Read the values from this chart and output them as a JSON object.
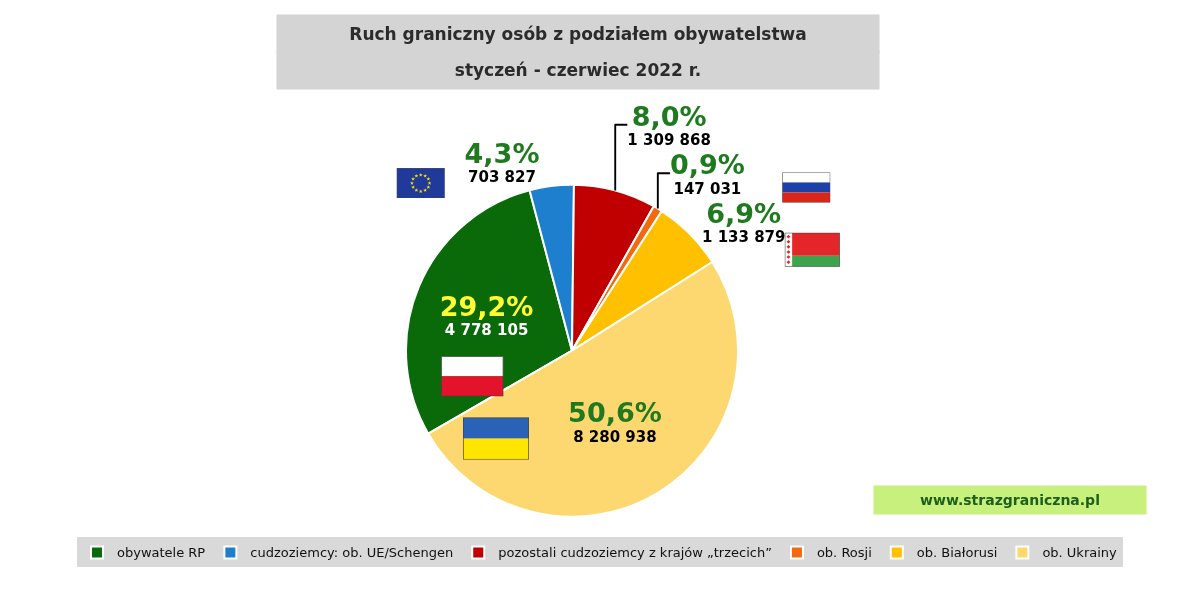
{
  "chart_data": {
    "type": "pie",
    "title": "Ruch graniczny osób z podziałem obywatelstwa",
    "subtitle": "styczeń - czerwiec 2022 r.",
    "categories": [
      "obywatele RP",
      "cudzoziemcy: ob. UE/Schengen",
      "pozostali cudzoziemcy z krajów „trzecich”",
      "ob. Rosji",
      "ob. Białorusi",
      "ob. Ukrainy"
    ],
    "values": [
      4778105,
      703827,
      1309868,
      147031,
      1133879,
      8280938
    ],
    "colors": [
      "#0a6a0a",
      "#1f7fcf",
      "#c00000",
      "#f26a10",
      "#ffc000",
      "#fdd870"
    ],
    "value_labels": [
      "29,2%\n4 778 105",
      "4,3%\n703 827",
      "8,0%\n1 309 868",
      "0,9%\n147 031",
      "6,9%\n1 133 879",
      "50,6%\n8 280 938"
    ],
    "legend": "bottom",
    "annotations": [
      "www.strazgraniczna.pl"
    ]
  }
}
